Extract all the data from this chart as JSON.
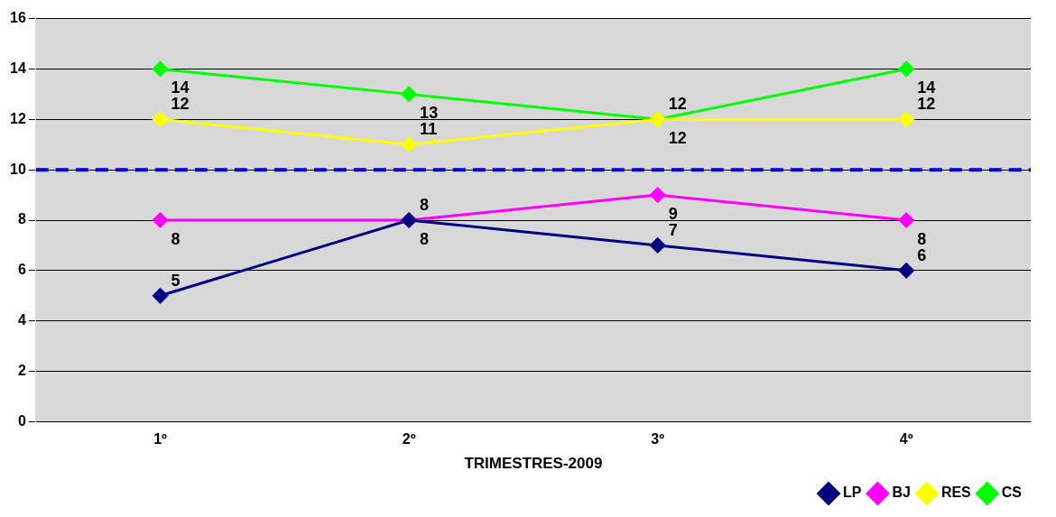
{
  "chart_data": {
    "type": "line",
    "xlabel": "TRIMESTRES-2009",
    "categories": [
      "1º",
      "2º",
      "3º",
      "4º"
    ],
    "series": [
      {
        "name": "LP",
        "color": "#000080",
        "values": [
          5,
          8,
          7,
          6
        ]
      },
      {
        "name": "BJ",
        "color": "#ff00ff",
        "values": [
          8,
          8,
          9,
          8
        ]
      },
      {
        "name": "RES",
        "color": "#ffff00",
        "values": [
          12,
          11,
          12,
          12
        ]
      },
      {
        "name": "CS",
        "color": "#00ff00",
        "values": [
          14,
          13,
          12,
          14
        ]
      }
    ],
    "ylim": [
      0,
      16
    ],
    "yticks": [
      0,
      2,
      4,
      6,
      8,
      10,
      12,
      14,
      16
    ],
    "grid": "y",
    "legend": "bottom right",
    "marker": "diamond",
    "line_style": "solid",
    "data_labels": true,
    "ref_lines": [
      {
        "axis": "y",
        "value": 10,
        "color": "#0000cc",
        "line_style": "dashed"
      }
    ]
  }
}
